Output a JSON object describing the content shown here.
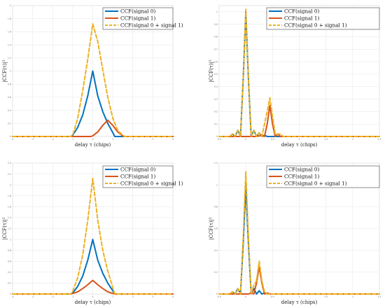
{
  "chart_data": [
    {
      "type": "line",
      "xlabel": "delay τ (chips)",
      "ylabel": "|CCF(τ)|²",
      "xlim": [
        -4,
        4
      ],
      "ylim": [
        0,
        2
      ],
      "x_ticks": [
        "-4",
        "-3",
        "-2",
        "-1",
        "0",
        "1",
        "2",
        "3",
        "4"
      ],
      "y_ticks": [
        "0",
        "0.2",
        "0.4",
        "0.6",
        "0.8",
        "1",
        "1.2",
        "1.4",
        "1.6",
        "1.8",
        "2"
      ],
      "grid": true,
      "legend_position": "top-right",
      "series": [
        {
          "name": "CCF(signal 0)",
          "color": "#0072bd",
          "dash": false,
          "x": [
            -4,
            -1.1,
            -1,
            -0.75,
            -0.5,
            -0.25,
            0,
            0.25,
            0.5,
            0.75,
            1,
            1.1,
            4
          ],
          "y": [
            0,
            0,
            0.02,
            0.14,
            0.33,
            0.62,
            1.0,
            0.62,
            0.38,
            0.2,
            0.06,
            0,
            0
          ]
        },
        {
          "name": "CCF(signal 1)",
          "color": "#d95319",
          "dash": false,
          "x": [
            -4,
            -0.1,
            0,
            0.25,
            0.5,
            0.75,
            1,
            1.25,
            1.5,
            1.6,
            4
          ],
          "y": [
            0,
            0,
            0.01,
            0.07,
            0.17,
            0.25,
            0.17,
            0.07,
            0.01,
            0,
            0
          ]
        },
        {
          "name": "CCF(signal 0 + signal 1)",
          "color": "#edb120",
          "dash": true,
          "x": [
            -4,
            -1.1,
            -1,
            -0.75,
            -0.5,
            -0.25,
            0,
            0.25,
            0.5,
            0.75,
            1,
            1.25,
            1.5,
            1.6,
            4
          ],
          "y": [
            0,
            0,
            0.02,
            0.28,
            0.7,
            1.18,
            1.72,
            1.45,
            1.02,
            0.6,
            0.28,
            0.09,
            0.02,
            0,
            0
          ]
        }
      ]
    },
    {
      "type": "line",
      "xlabel": "delay τ (chips)",
      "ylabel": "|CCF(τ)|²",
      "xlim": [
        -0.5,
        2.5
      ],
      "ylim": [
        0,
        1.05
      ],
      "x_ticks": [
        "-0.5",
        "0",
        "0.5",
        "1",
        "1.5",
        "2",
        "2.5"
      ],
      "y_ticks": [
        "0",
        "0.1",
        "0.2",
        "0.3",
        "0.4",
        "0.5",
        "0.6",
        "0.7",
        "0.8",
        "0.9",
        "1"
      ],
      "grid": true,
      "legend_position": "top-right",
      "series": [
        {
          "name": "CCF(signal 0)",
          "color": "#0072bd",
          "dash": false,
          "x": [
            -0.5,
            -0.3,
            -0.25,
            -0.2,
            -0.15,
            -0.1,
            -0.05,
            0,
            0.05,
            0.1,
            0.15,
            0.2,
            0.25,
            0.3,
            0.35,
            0.4,
            2.5
          ],
          "y": [
            0,
            0,
            0.02,
            0,
            0.05,
            0,
            0.45,
            1.0,
            0.45,
            0,
            0.05,
            0,
            0.03,
            0,
            0.01,
            0,
            0
          ]
        },
        {
          "name": "CCF(signal 1)",
          "color": "#d95319",
          "dash": false,
          "x": [
            -0.5,
            0.2,
            0.3,
            0.35,
            0.4,
            0.45,
            0.5,
            0.55,
            0.6,
            0.65,
            0.7,
            2.5
          ],
          "y": [
            0,
            0,
            0.01,
            0,
            0.1,
            0.25,
            0.1,
            0,
            0.02,
            0,
            0,
            0
          ]
        },
        {
          "name": "CCF(signal 0 + signal 1)",
          "color": "#edb120",
          "dash": true,
          "x": [
            -0.5,
            -0.3,
            -0.25,
            -0.2,
            -0.15,
            -0.1,
            -0.05,
            0,
            0.05,
            0.1,
            0.15,
            0.2,
            0.25,
            0.3,
            0.35,
            0.4,
            0.45,
            0.5,
            0.55,
            0.6,
            0.65,
            0.7,
            2.5
          ],
          "y": [
            0,
            0,
            0.02,
            0,
            0.05,
            0,
            0.45,
            1.02,
            0.45,
            0,
            0.05,
            0,
            0.03,
            0,
            0.1,
            0.2,
            0.31,
            0.16,
            0.02,
            0.02,
            0.02,
            0,
            0
          ]
        }
      ]
    },
    {
      "type": "line",
      "xlabel": "delay τ (chips)",
      "ylabel": "|CCF(τ)|²",
      "xlim": [
        -4,
        4
      ],
      "ylim": [
        0,
        2.4
      ],
      "x_ticks": [
        "-4",
        "-3",
        "-2",
        "-1",
        "0",
        "1",
        "2",
        "3",
        "4"
      ],
      "y_ticks": [
        "0",
        "0.2",
        "0.4",
        "0.6",
        "0.8",
        "1",
        "1.2",
        "1.4",
        "1.6",
        "1.8",
        "2",
        "2.2",
        "2.4"
      ],
      "grid": true,
      "legend_position": "top-right",
      "series": [
        {
          "name": "CCF(signal 0)",
          "color": "#0072bd",
          "dash": false,
          "x": [
            -4,
            -1.1,
            -1,
            -0.75,
            -0.5,
            -0.25,
            0,
            0.25,
            0.5,
            0.75,
            1,
            1.1,
            4
          ],
          "y": [
            0,
            0,
            0.02,
            0.14,
            0.33,
            0.62,
            1.0,
            0.62,
            0.38,
            0.2,
            0.06,
            0,
            0
          ]
        },
        {
          "name": "CCF(signal 1)",
          "color": "#d95319",
          "dash": false,
          "x": [
            -4,
            -1.1,
            -1,
            -0.75,
            -0.5,
            -0.25,
            0,
            0.25,
            0.5,
            0.75,
            1,
            1.1,
            4
          ],
          "y": [
            0,
            0,
            0.01,
            0.04,
            0.1,
            0.17,
            0.25,
            0.17,
            0.1,
            0.04,
            0.01,
            0,
            0
          ]
        },
        {
          "name": "CCF(signal 0 + signal 1)",
          "color": "#edb120",
          "dash": true,
          "x": [
            -4,
            -1.1,
            -1,
            -0.75,
            -0.5,
            -0.25,
            0,
            0.25,
            0.5,
            0.75,
            1,
            1.1,
            4
          ],
          "y": [
            0,
            0,
            0.05,
            0.3,
            0.72,
            1.35,
            2.12,
            1.35,
            0.8,
            0.42,
            0.12,
            0,
            0
          ]
        }
      ]
    },
    {
      "type": "line",
      "xlabel": "delay τ (chips)",
      "ylabel": "|CCF(τ)|²",
      "xlim": [
        -0.5,
        2.5
      ],
      "ylim": [
        0,
        1.2
      ],
      "x_ticks": [
        "-0.5",
        "0",
        "0.5",
        "1",
        "1.5",
        "2",
        "2.5"
      ],
      "y_ticks": [
        "0",
        "0.2",
        "0.4",
        "0.6",
        "0.8",
        "1",
        "1.2"
      ],
      "grid": true,
      "legend_position": "top-right",
      "series": [
        {
          "name": "CCF(signal 0)",
          "color": "#0072bd",
          "dash": false,
          "x": [
            -0.5,
            -0.3,
            -0.25,
            -0.2,
            -0.15,
            -0.1,
            -0.05,
            0,
            0.05,
            0.1,
            0.15,
            0.2,
            0.25,
            0.3,
            0.35,
            0.4,
            2.5
          ],
          "y": [
            0,
            0,
            0.02,
            0,
            0.05,
            0,
            0.45,
            1.0,
            0.45,
            0,
            0.05,
            0,
            0.03,
            0,
            0.01,
            0,
            0
          ]
        },
        {
          "name": "CCF(signal 1)",
          "color": "#d95319",
          "dash": false,
          "x": [
            -0.5,
            0.05,
            0.1,
            0.15,
            0.2,
            0.25,
            0.3,
            0.35,
            0.4,
            0.45,
            2.5
          ],
          "y": [
            0,
            0,
            0.01,
            0,
            0.1,
            0.25,
            0.1,
            0,
            0.01,
            0,
            0
          ]
        },
        {
          "name": "CCF(signal 0 + signal 1)",
          "color": "#edb120",
          "dash": true,
          "x": [
            -0.5,
            -0.3,
            -0.25,
            -0.2,
            -0.15,
            -0.1,
            -0.05,
            0,
            0.05,
            0.1,
            0.15,
            0.2,
            0.25,
            0.3,
            0.35,
            0.4,
            2.5
          ],
          "y": [
            0,
            0,
            0.02,
            0,
            0.05,
            0,
            0.5,
            1.12,
            0.5,
            0,
            0.08,
            0.12,
            0.3,
            0.12,
            0.02,
            0,
            0
          ]
        }
      ]
    }
  ]
}
